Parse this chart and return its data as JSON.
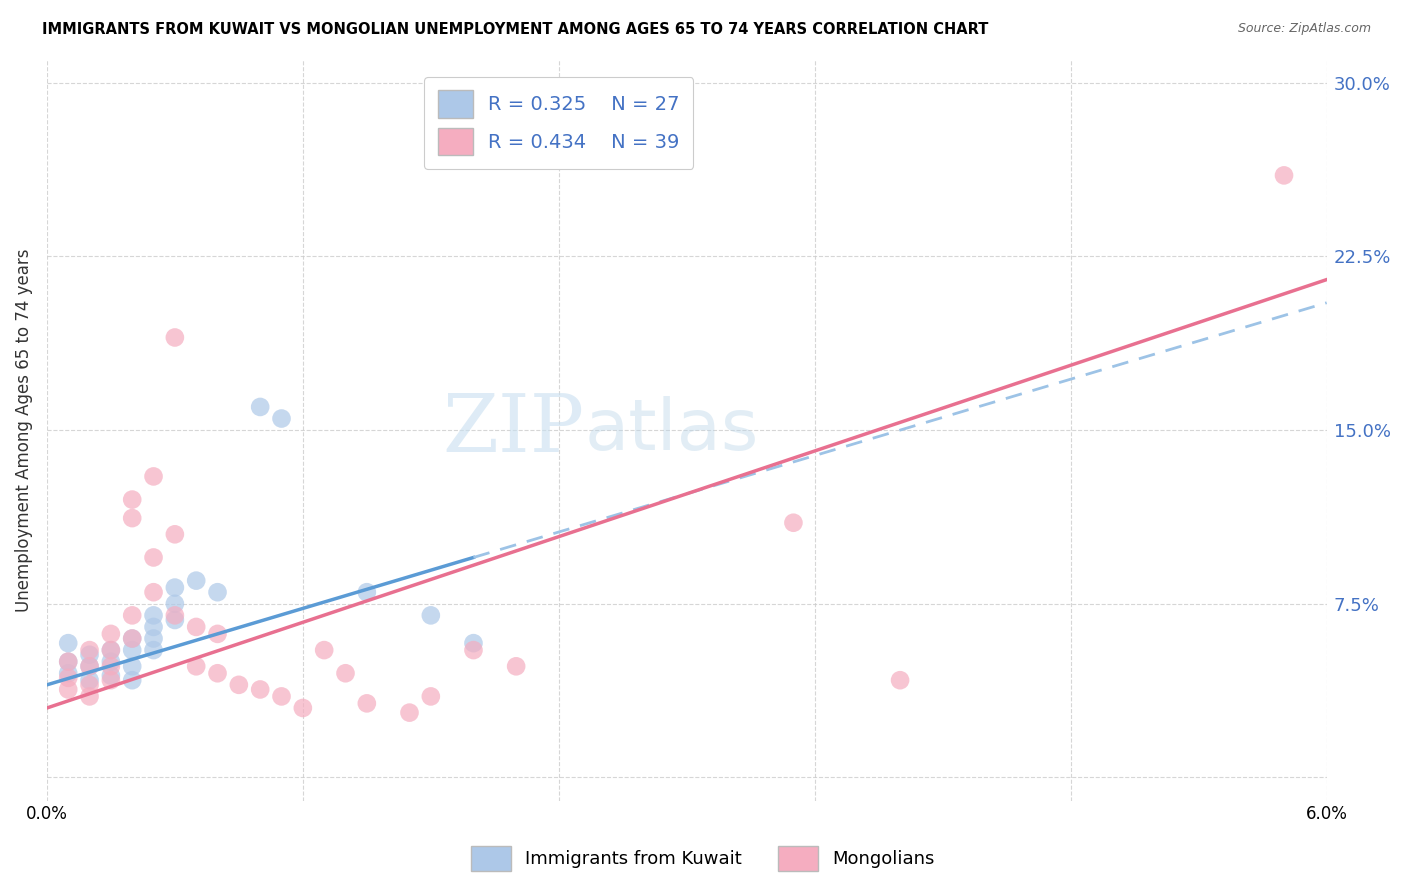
{
  "title": "IMMIGRANTS FROM KUWAIT VS MONGOLIAN UNEMPLOYMENT AMONG AGES 65 TO 74 YEARS CORRELATION CHART",
  "source": "Source: ZipAtlas.com",
  "ylabel": "Unemployment Among Ages 65 to 74 years",
  "xlim": [
    0.0,
    0.06
  ],
  "ylim": [
    -0.01,
    0.31
  ],
  "yticks": [
    0.0,
    0.075,
    0.15,
    0.225,
    0.3
  ],
  "ytick_labels": [
    "",
    "7.5%",
    "15.0%",
    "22.5%",
    "30.0%"
  ],
  "xtick_positions": [
    0.0,
    0.012,
    0.024,
    0.036,
    0.048,
    0.06
  ],
  "xtick_labels": [
    "0.0%",
    "",
    "",
    "",
    "",
    "6.0%"
  ],
  "legend_r1": "R = 0.325",
  "legend_n1": "N = 27",
  "legend_r2": "R = 0.434",
  "legend_n2": "N = 39",
  "color_kuwait": "#adc8e8",
  "color_mongolia": "#f5adc0",
  "line_color_kuwait_solid": "#5b9bd5",
  "line_color_kuwait_dash": "#9dc3e6",
  "line_color_mongolia": "#e87090",
  "watermark_zip": "ZIP",
  "watermark_atlas": "atlas",
  "kuwait_points": [
    [
      0.001,
      0.05
    ],
    [
      0.001,
      0.058
    ],
    [
      0.001,
      0.045
    ],
    [
      0.002,
      0.053
    ],
    [
      0.002,
      0.048
    ],
    [
      0.002,
      0.042
    ],
    [
      0.003,
      0.055
    ],
    [
      0.003,
      0.05
    ],
    [
      0.003,
      0.044
    ],
    [
      0.004,
      0.06
    ],
    [
      0.004,
      0.055
    ],
    [
      0.004,
      0.048
    ],
    [
      0.004,
      0.042
    ],
    [
      0.005,
      0.07
    ],
    [
      0.005,
      0.065
    ],
    [
      0.005,
      0.06
    ],
    [
      0.005,
      0.055
    ],
    [
      0.006,
      0.082
    ],
    [
      0.006,
      0.075
    ],
    [
      0.006,
      0.068
    ],
    [
      0.007,
      0.085
    ],
    [
      0.008,
      0.08
    ],
    [
      0.01,
      0.16
    ],
    [
      0.011,
      0.155
    ],
    [
      0.015,
      0.08
    ],
    [
      0.018,
      0.07
    ],
    [
      0.02,
      0.058
    ]
  ],
  "mongolia_points": [
    [
      0.001,
      0.05
    ],
    [
      0.001,
      0.043
    ],
    [
      0.001,
      0.038
    ],
    [
      0.002,
      0.055
    ],
    [
      0.002,
      0.048
    ],
    [
      0.002,
      0.04
    ],
    [
      0.002,
      0.035
    ],
    [
      0.003,
      0.062
    ],
    [
      0.003,
      0.055
    ],
    [
      0.003,
      0.048
    ],
    [
      0.003,
      0.042
    ],
    [
      0.004,
      0.12
    ],
    [
      0.004,
      0.112
    ],
    [
      0.004,
      0.07
    ],
    [
      0.004,
      0.06
    ],
    [
      0.005,
      0.13
    ],
    [
      0.005,
      0.095
    ],
    [
      0.005,
      0.08
    ],
    [
      0.006,
      0.19
    ],
    [
      0.006,
      0.105
    ],
    [
      0.006,
      0.07
    ],
    [
      0.007,
      0.065
    ],
    [
      0.007,
      0.048
    ],
    [
      0.008,
      0.062
    ],
    [
      0.008,
      0.045
    ],
    [
      0.009,
      0.04
    ],
    [
      0.01,
      0.038
    ],
    [
      0.011,
      0.035
    ],
    [
      0.012,
      0.03
    ],
    [
      0.013,
      0.055
    ],
    [
      0.014,
      0.045
    ],
    [
      0.015,
      0.032
    ],
    [
      0.017,
      0.028
    ],
    [
      0.018,
      0.035
    ],
    [
      0.02,
      0.055
    ],
    [
      0.022,
      0.048
    ],
    [
      0.035,
      0.11
    ],
    [
      0.04,
      0.042
    ],
    [
      0.058,
      0.26
    ]
  ],
  "kuwait_line_solid": [
    [
      0.0,
      0.04
    ],
    [
      0.02,
      0.095
    ]
  ],
  "kuwait_line_dash": [
    [
      0.02,
      0.095
    ],
    [
      0.06,
      0.205
    ]
  ],
  "mongolia_line": [
    [
      0.0,
      0.03
    ],
    [
      0.06,
      0.215
    ]
  ]
}
